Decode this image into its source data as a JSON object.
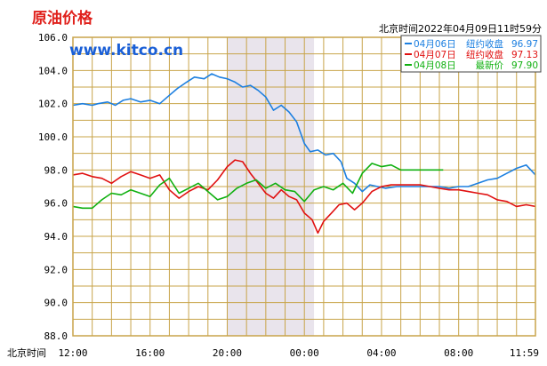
{
  "chart_data": {
    "type": "line",
    "title": "原油价格",
    "brand": "www.kitco.cn",
    "timestamp": "北京时间2022年04月09日11时59分",
    "xlabel_prefix": "北京时间",
    "x_ticks": [
      "12:00",
      "16:00",
      "20:00",
      "00:00",
      "04:00",
      "08:00",
      "11:59"
    ],
    "y_ticks": [
      "106.0",
      "104.0",
      "102.0",
      "100.0",
      "98.0",
      "96.0",
      "94.0",
      "92.0",
      "90.0",
      "88.0"
    ],
    "ylim": [
      88,
      106
    ],
    "x_range_hours": [
      0,
      23.98
    ],
    "shaded_range_hours": [
      8,
      12.5
    ],
    "grid": true,
    "legend_position": "top-right",
    "colors": {
      "title": "#e0201b",
      "brand": "#1a5fd6",
      "grid": "#c8a44a",
      "shade": "#e9e4ec",
      "series1": "#1c7fe0",
      "series2": "#e01010",
      "series3": "#10b010"
    },
    "series": [
      {
        "legend_date": "04月06日",
        "legend_label": "纽约收盘",
        "legend_value": "96.97",
        "color_key": "series1",
        "points": [
          [
            0,
            101.9
          ],
          [
            0.5,
            102.0
          ],
          [
            1.0,
            101.9
          ],
          [
            1.3,
            102.0
          ],
          [
            1.8,
            102.1
          ],
          [
            2.2,
            101.9
          ],
          [
            2.6,
            102.2
          ],
          [
            3.0,
            102.3
          ],
          [
            3.5,
            102.1
          ],
          [
            4.0,
            102.2
          ],
          [
            4.5,
            102.0
          ],
          [
            5.0,
            102.5
          ],
          [
            5.4,
            102.9
          ],
          [
            5.9,
            103.3
          ],
          [
            6.3,
            103.6
          ],
          [
            6.8,
            103.5
          ],
          [
            7.2,
            103.8
          ],
          [
            7.6,
            103.6
          ],
          [
            8.0,
            103.5
          ],
          [
            8.4,
            103.3
          ],
          [
            8.8,
            103.0
          ],
          [
            9.2,
            103.1
          ],
          [
            9.6,
            102.8
          ],
          [
            10.0,
            102.4
          ],
          [
            10.4,
            101.6
          ],
          [
            10.8,
            101.9
          ],
          [
            11.2,
            101.5
          ],
          [
            11.6,
            100.9
          ],
          [
            12.0,
            99.6
          ],
          [
            12.3,
            99.1
          ],
          [
            12.7,
            99.2
          ],
          [
            13.1,
            98.9
          ],
          [
            13.5,
            99.0
          ],
          [
            13.9,
            98.5
          ],
          [
            14.2,
            97.5
          ],
          [
            14.6,
            97.2
          ],
          [
            15.0,
            96.7
          ],
          [
            15.4,
            97.1
          ],
          [
            15.8,
            97.0
          ],
          [
            16.2,
            96.9
          ],
          [
            16.8,
            97.0
          ],
          [
            17.4,
            97.0
          ],
          [
            18.0,
            97.0
          ],
          [
            18.5,
            97.0
          ],
          [
            19.0,
            97.0
          ],
          [
            19.5,
            96.9
          ],
          [
            20.0,
            97.0
          ],
          [
            20.5,
            97.0
          ],
          [
            21.0,
            97.2
          ],
          [
            21.5,
            97.4
          ],
          [
            22.0,
            97.5
          ],
          [
            22.5,
            97.8
          ],
          [
            23.0,
            98.1
          ],
          [
            23.5,
            98.3
          ],
          [
            23.98,
            97.7
          ]
        ]
      },
      {
        "legend_date": "04月07日",
        "legend_label": "纽约收盘",
        "legend_value": "97.13",
        "color_key": "series2",
        "points": [
          [
            0,
            97.7
          ],
          [
            0.5,
            97.8
          ],
          [
            1.0,
            97.6
          ],
          [
            1.5,
            97.5
          ],
          [
            2.0,
            97.2
          ],
          [
            2.5,
            97.6
          ],
          [
            3.0,
            97.9
          ],
          [
            3.5,
            97.7
          ],
          [
            4.0,
            97.5
          ],
          [
            4.5,
            97.7
          ],
          [
            5.0,
            96.8
          ],
          [
            5.5,
            96.3
          ],
          [
            6.0,
            96.7
          ],
          [
            6.5,
            97.0
          ],
          [
            7.0,
            96.8
          ],
          [
            7.5,
            97.4
          ],
          [
            8.0,
            98.2
          ],
          [
            8.4,
            98.6
          ],
          [
            8.8,
            98.5
          ],
          [
            9.2,
            97.8
          ],
          [
            9.6,
            97.2
          ],
          [
            10.0,
            96.6
          ],
          [
            10.4,
            96.3
          ],
          [
            10.8,
            96.8
          ],
          [
            11.2,
            96.4
          ],
          [
            11.6,
            96.2
          ],
          [
            12.0,
            95.4
          ],
          [
            12.4,
            95.0
          ],
          [
            12.7,
            94.2
          ],
          [
            13.0,
            94.9
          ],
          [
            13.4,
            95.4
          ],
          [
            13.8,
            95.9
          ],
          [
            14.2,
            96.0
          ],
          [
            14.6,
            95.6
          ],
          [
            15.0,
            96.0
          ],
          [
            15.5,
            96.7
          ],
          [
            16.0,
            97.0
          ],
          [
            16.5,
            97.1
          ],
          [
            17.0,
            97.1
          ],
          [
            17.5,
            97.1
          ],
          [
            18.0,
            97.1
          ],
          [
            18.5,
            97.0
          ],
          [
            19.0,
            96.9
          ],
          [
            19.5,
            96.8
          ],
          [
            20.0,
            96.8
          ],
          [
            20.5,
            96.7
          ],
          [
            21.0,
            96.6
          ],
          [
            21.5,
            96.5
          ],
          [
            22.0,
            96.2
          ],
          [
            22.5,
            96.1
          ],
          [
            23.0,
            95.8
          ],
          [
            23.5,
            95.9
          ],
          [
            23.98,
            95.8
          ]
        ]
      },
      {
        "legend_date": "04月08日",
        "legend_label": "最新价",
        "legend_value": "97.90",
        "color_key": "series3",
        "points": [
          [
            0,
            95.8
          ],
          [
            0.5,
            95.7
          ],
          [
            1.0,
            95.7
          ],
          [
            1.5,
            96.2
          ],
          [
            2.0,
            96.6
          ],
          [
            2.5,
            96.5
          ],
          [
            3.0,
            96.8
          ],
          [
            3.5,
            96.6
          ],
          [
            4.0,
            96.4
          ],
          [
            4.5,
            97.1
          ],
          [
            5.0,
            97.5
          ],
          [
            5.5,
            96.6
          ],
          [
            6.0,
            96.9
          ],
          [
            6.5,
            97.2
          ],
          [
            7.0,
            96.7
          ],
          [
            7.5,
            96.2
          ],
          [
            8.0,
            96.4
          ],
          [
            8.5,
            96.9
          ],
          [
            9.0,
            97.2
          ],
          [
            9.5,
            97.4
          ],
          [
            10.0,
            96.9
          ],
          [
            10.5,
            97.2
          ],
          [
            11.0,
            96.8
          ],
          [
            11.5,
            96.7
          ],
          [
            12.0,
            96.1
          ],
          [
            12.5,
            96.8
          ],
          [
            13.0,
            97.0
          ],
          [
            13.5,
            96.8
          ],
          [
            14.0,
            97.2
          ],
          [
            14.5,
            96.6
          ],
          [
            15.0,
            97.8
          ],
          [
            15.5,
            98.4
          ],
          [
            16.0,
            98.2
          ],
          [
            16.5,
            98.3
          ],
          [
            17.0,
            98.0
          ],
          [
            17.5,
            98.0
          ],
          [
            18.0,
            98.0
          ],
          [
            18.5,
            98.0
          ],
          [
            19.0,
            98.0
          ],
          [
            19.2,
            98.0
          ]
        ]
      }
    ]
  }
}
